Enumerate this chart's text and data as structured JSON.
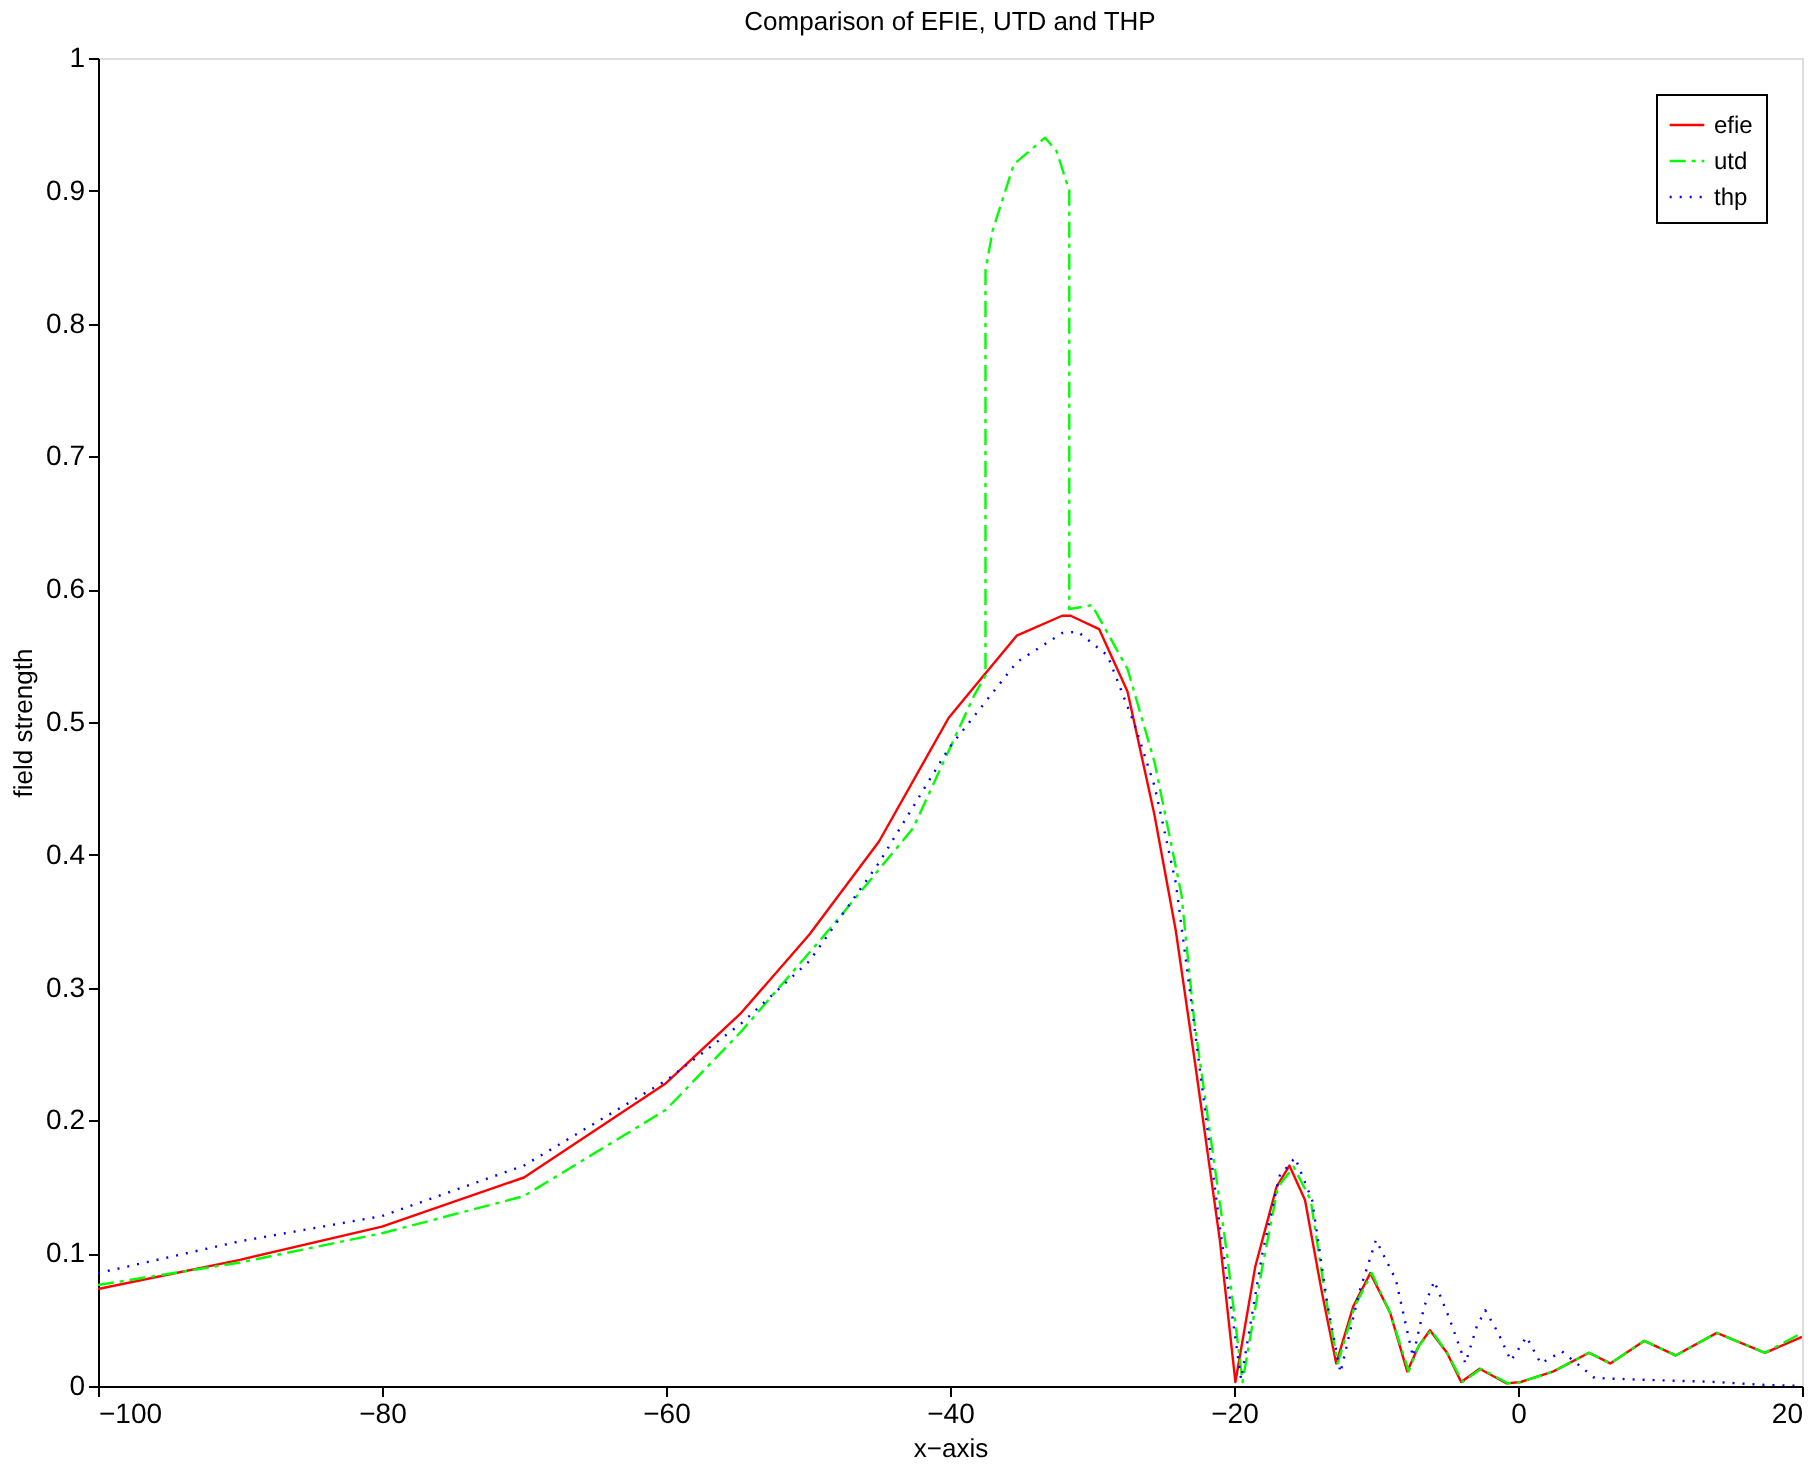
{
  "chart_data": {
    "type": "line",
    "title": "Comparison of EFIE, UTD and THP",
    "xlabel": "x−axis",
    "ylabel": "field strength",
    "xlim": [
      -100,
      20
    ],
    "xticks": [
      -100,
      -80,
      -60,
      -40,
      -20,
      0,
      20
    ],
    "ylim": [
      0,
      1
    ],
    "yticks": [
      0,
      0.1,
      0.2,
      0.3,
      0.4,
      0.5,
      0.6,
      0.7,
      0.8,
      0.9,
      1
    ],
    "grid": false,
    "legend": "top right",
    "series": [
      {
        "name": "efie",
        "color": "#ff0000",
        "line_style": "solid",
        "x": [
          -100,
          -90,
          -80,
          -70,
          -60,
          -54.7,
          -49.9,
          -45,
          -40.1,
          -37.7,
          -35.3,
          -32.1,
          -31.5,
          -29.5,
          -27.5,
          -25.6,
          -24.1,
          -22.7,
          -21,
          -19.9,
          -18.5,
          -17,
          -16.1,
          -15,
          -13.8,
          -12.8,
          -11.6,
          -10.4,
          -9,
          -7.8,
          -7,
          -6.2,
          -5,
          -4,
          -2.7,
          -1.5,
          -0.8,
          0.2,
          2.5,
          5,
          6.5,
          8.9,
          11.1,
          14,
          17.4,
          20
        ],
        "values": [
          0.073,
          0.095,
          0.12,
          0.157,
          0.228,
          0.281,
          0.34,
          0.41,
          0.503,
          0.534,
          0.565,
          0.58,
          0.58,
          0.57,
          0.523,
          0.43,
          0.343,
          0.24,
          0.11,
          0.003,
          0.09,
          0.15,
          0.166,
          0.14,
          0.07,
          0.017,
          0.06,
          0.085,
          0.055,
          0.011,
          0.03,
          0.042,
          0.025,
          0.003,
          0.013,
          0.006,
          0.002,
          0.003,
          0.011,
          0.025,
          0.017,
          0.034,
          0.023,
          0.04,
          0.025,
          0.037
        ]
      },
      {
        "name": "utd",
        "color": "#00ff00",
        "line_style": "dashed",
        "x": [
          -100,
          -90,
          -80,
          -70,
          -60,
          -54.7,
          -48.4,
          -42.6,
          -38.3,
          -37.5,
          -37.5,
          -37,
          -35.5,
          -33.3,
          -32.5,
          -31.6,
          -31.6,
          -30,
          -27.5,
          -25.6,
          -23.7,
          -22.8,
          -20.5,
          -19.4,
          -18,
          -16.9,
          -15.8,
          -14.6,
          -13.6,
          -12.7,
          -11.5,
          -10.3,
          -9,
          -7.7,
          -7,
          -6.1,
          -5,
          -3.9,
          -2.6,
          -0.7,
          0.2,
          2.5,
          5,
          6.5,
          8.9,
          11.1,
          14,
          17.4,
          20
        ],
        "values": [
          0.076,
          0.093,
          0.115,
          0.143,
          0.208,
          0.267,
          0.345,
          0.42,
          0.52,
          0.535,
          0.84,
          0.87,
          0.92,
          0.94,
          0.93,
          0.9,
          0.585,
          0.588,
          0.54,
          0.47,
          0.37,
          0.275,
          0.1,
          0.003,
          0.09,
          0.15,
          0.165,
          0.14,
          0.07,
          0.017,
          0.06,
          0.085,
          0.055,
          0.011,
          0.03,
          0.042,
          0.025,
          0.003,
          0.013,
          0.002,
          0.003,
          0.011,
          0.025,
          0.017,
          0.034,
          0.023,
          0.04,
          0.025,
          0.04
        ]
      },
      {
        "name": "thp",
        "color": "#0000ff",
        "line_style": "dotted",
        "x": [
          -100,
          -90,
          -80,
          -70,
          -60,
          -54.7,
          -49.9,
          -45,
          -40.1,
          -35.3,
          -32.1,
          -31,
          -28.9,
          -27,
          -25.6,
          -24.1,
          -23.1,
          -21,
          -19.5,
          -18,
          -16.8,
          -15.7,
          -14.5,
          -13.4,
          -12.5,
          -11.2,
          -10,
          -8.6,
          -7.4,
          -6.6,
          -5.9,
          -4.8,
          -3.7,
          -2.9,
          -2.3,
          -1.4,
          -0.5,
          0.6,
          1.6,
          3.1,
          5.4,
          8,
          11,
          14,
          17,
          20
        ],
        "values": [
          0.085,
          0.109,
          0.128,
          0.166,
          0.23,
          0.273,
          0.32,
          0.394,
          0.48,
          0.545,
          0.567,
          0.568,
          0.55,
          0.498,
          0.452,
          0.379,
          0.297,
          0.12,
          0.005,
          0.1,
          0.158,
          0.172,
          0.14,
          0.06,
          0.01,
          0.07,
          0.11,
          0.08,
          0.022,
          0.06,
          0.079,
          0.05,
          0.017,
          0.045,
          0.057,
          0.04,
          0.019,
          0.037,
          0.017,
          0.026,
          0.006,
          0.005,
          0.004,
          0.003,
          0.001,
          0
        ]
      }
    ]
  }
}
